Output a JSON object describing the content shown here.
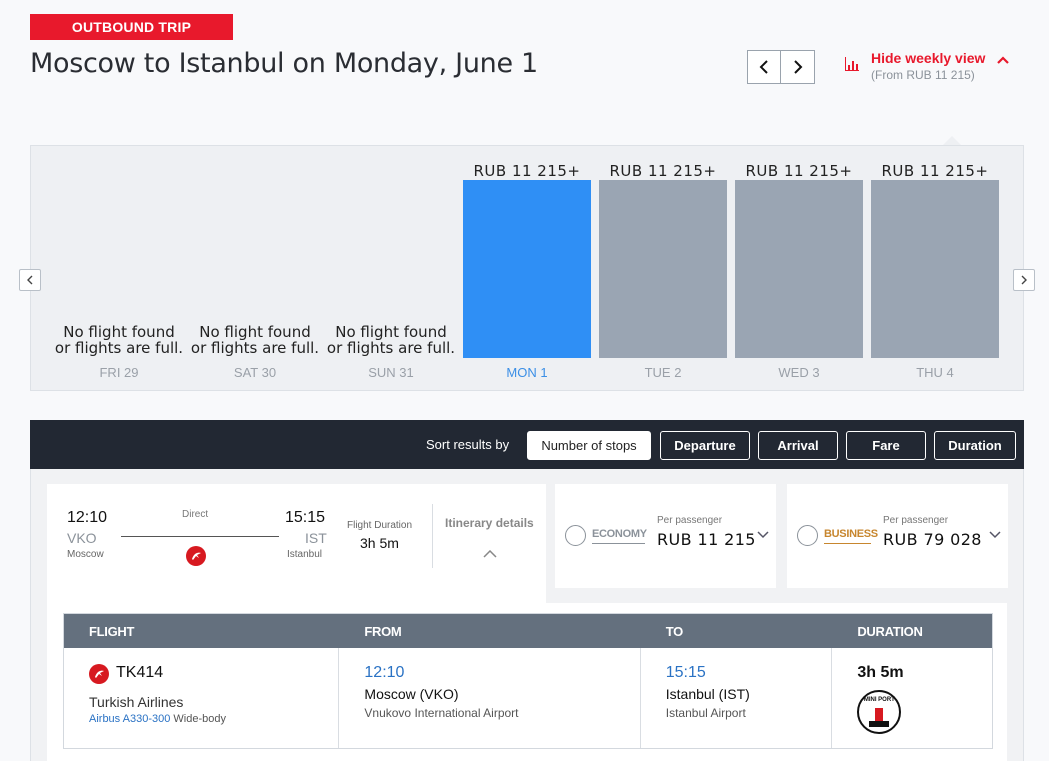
{
  "badge": "OUTBOUND TRIP",
  "title": "Moscow to Istanbul on Monday, June 1",
  "nav": {
    "prev_icon": "chevron-left-icon",
    "next_icon": "chevron-right-icon"
  },
  "weekly": {
    "label": "Hide weekly view",
    "sub": "(From RUB 11 215)",
    "icon": "bar-chart-icon",
    "accent": "#e8192c"
  },
  "week": {
    "days": [
      {
        "label": "FRI 29",
        "status": "No flight found or flights are full.",
        "nf1": "No flight found",
        "nf2": "or flights are full."
      },
      {
        "label": "SAT 30",
        "status": "No flight found or flights are full.",
        "nf1": "No flight found",
        "nf2": "or flights are full."
      },
      {
        "label": "SUN 31",
        "status": "No flight found or flights are full.",
        "nf1": "No flight found",
        "nf2": "or flights are full."
      },
      {
        "label": "MON 1",
        "price": "RUB 11 215+",
        "selected": true
      },
      {
        "label": "TUE 2",
        "price": "RUB 11 215+"
      },
      {
        "label": "WED 3",
        "price": "RUB 11 215+"
      },
      {
        "label": "THU 4",
        "price": "RUB 11 215+"
      }
    ],
    "selected_color": "#2f8ff5",
    "bar_color": "#9aa5b3"
  },
  "sort": {
    "label": "Sort results by",
    "options": [
      "Number of stops",
      "Departure",
      "Arrival",
      "Fare",
      "Duration"
    ],
    "active": "Number of stops"
  },
  "flight": {
    "dep_time": "12:10",
    "dep_code": "VKO",
    "dep_city": "Moscow",
    "arr_time": "15:15",
    "arr_code": "IST",
    "arr_city": "Istanbul",
    "stops": "Direct",
    "duration_label": "Flight Duration",
    "duration": "3h 5m",
    "itinerary": "Itinerary details"
  },
  "fares": [
    {
      "cabin": "ECONOMY",
      "per": "Per passenger",
      "price": "RUB 11 215"
    },
    {
      "cabin": "BUSINESS",
      "per": "Per passenger",
      "price": "RUB 79 028"
    }
  ],
  "details": {
    "headers": [
      "FLIGHT",
      "FROM",
      "TO",
      "DURATION"
    ],
    "flight_no": "TK414",
    "airline": "Turkish Airlines",
    "aircraft": "Airbus A330-300",
    "body": " Wide-body",
    "from_time": "12:10",
    "from_place": "Moscow (VKO)",
    "from_airport": "Vnukovo International Airport",
    "to_time": "15:15",
    "to_place": "Istanbul (IST)",
    "to_airport": "Istanbul Airport",
    "duration": "3h 5m",
    "miniport_text": "MINI PORT"
  }
}
